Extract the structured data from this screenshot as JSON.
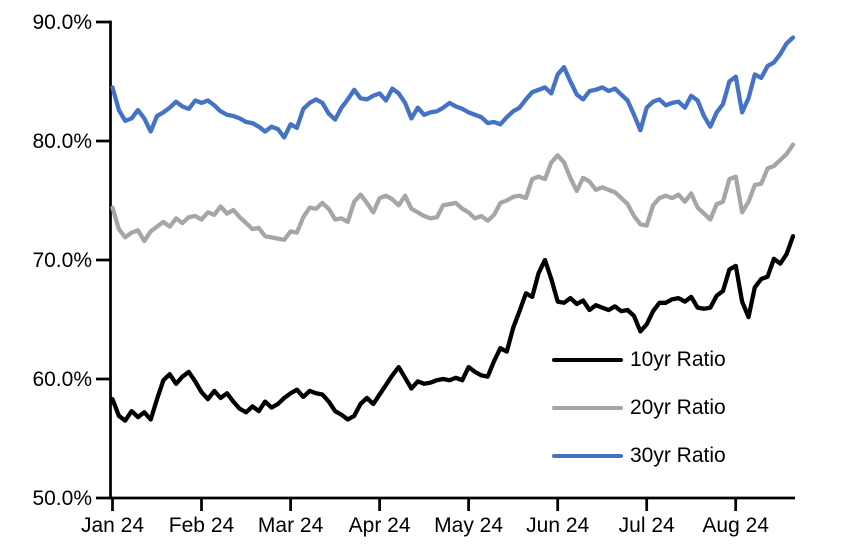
{
  "figure": {
    "background_color": "#ffffff",
    "axis_color": "#000000",
    "title": ""
  },
  "chart_data": {
    "type": "line",
    "title": "",
    "xlabel": "",
    "ylabel": "",
    "grid": false,
    "legend_position": "inside lower right",
    "ylim": [
      50,
      90
    ],
    "y_tick_labels": [
      "90.0%",
      "80.0%",
      "70.0%",
      "60.0%",
      "50.0%"
    ],
    "y_tick_values": [
      90,
      80,
      70,
      60,
      50
    ],
    "x_tick_labels": [
      "Jan 24",
      "Feb 24",
      "Mar 24",
      "Apr 24",
      "May 24",
      "Jun 24",
      "Jul 24",
      "Aug 24"
    ],
    "x_tick_indices": [
      0,
      14,
      28,
      42,
      56,
      70,
      84,
      98
    ],
    "x_unit": "business days, Jan 2024 through late Aug 2024 (14 points per month)",
    "series": [
      {
        "name": "10yr Ratio",
        "color": "#000000",
        "values": [
          58.3,
          56.9,
          56.5,
          57.3,
          56.8,
          57.2,
          56.6,
          58.3,
          59.9,
          60.4,
          59.6,
          60.2,
          60.6,
          59.8,
          58.9,
          58.3,
          59.0,
          58.4,
          58.8,
          58.1,
          57.5,
          57.2,
          57.7,
          57.3,
          58.1,
          57.6,
          57.9,
          58.4,
          58.8,
          59.1,
          58.5,
          59.0,
          58.8,
          58.7,
          58.1,
          57.3,
          57.0,
          56.6,
          56.9,
          57.9,
          58.4,
          57.9,
          58.7,
          59.5,
          60.3,
          61.0,
          60.1,
          59.2,
          59.8,
          59.6,
          59.7,
          59.9,
          60.0,
          59.9,
          60.1,
          59.9,
          61.0,
          60.6,
          60.3,
          60.2,
          61.5,
          62.6,
          62.3,
          64.3,
          65.7,
          67.2,
          66.9,
          68.9,
          70.0,
          68.4,
          66.5,
          66.4,
          66.8,
          66.3,
          66.6,
          65.8,
          66.2,
          66.0,
          65.8,
          66.1,
          65.7,
          65.8,
          65.3,
          64.0,
          64.6,
          65.7,
          66.4,
          66.4,
          66.7,
          66.8,
          66.5,
          66.9,
          66.0,
          65.9,
          66.0,
          67.0,
          67.4,
          69.2,
          69.5,
          66.5,
          65.2,
          67.7,
          68.4,
          68.6,
          70.1,
          69.7,
          70.5,
          72.0
        ]
      },
      {
        "name": "20yr Ratio",
        "color": "#A6A6A6",
        "values": [
          74.4,
          72.6,
          71.9,
          72.3,
          72.5,
          71.6,
          72.4,
          72.8,
          73.2,
          72.8,
          73.5,
          73.1,
          73.6,
          73.7,
          73.4,
          74.0,
          73.8,
          74.5,
          73.9,
          74.2,
          73.6,
          73.1,
          72.6,
          72.7,
          72.0,
          71.9,
          71.8,
          71.7,
          72.4,
          72.3,
          73.6,
          74.4,
          74.3,
          74.8,
          74.3,
          73.4,
          73.5,
          73.2,
          74.9,
          75.5,
          74.8,
          74.0,
          75.2,
          75.4,
          75.1,
          74.6,
          75.4,
          74.3,
          74.0,
          73.7,
          73.5,
          73.6,
          74.6,
          74.7,
          74.8,
          74.3,
          74.0,
          73.5,
          73.7,
          73.3,
          73.8,
          74.8,
          75.0,
          75.3,
          75.4,
          75.2,
          76.8,
          77.0,
          76.8,
          78.2,
          78.8,
          78.2,
          76.9,
          75.8,
          76.9,
          76.6,
          75.9,
          76.1,
          75.9,
          75.7,
          75.2,
          74.7,
          73.7,
          73.0,
          72.9,
          74.6,
          75.2,
          75.4,
          75.2,
          75.5,
          74.9,
          75.6,
          74.4,
          73.9,
          73.4,
          74.7,
          74.9,
          76.8,
          77.0,
          74.0,
          74.9,
          76.3,
          76.4,
          77.7,
          77.9,
          78.4,
          78.9,
          79.7
        ]
      },
      {
        "name": "30yr Ratio",
        "color": "#4472C4",
        "values": [
          84.5,
          82.6,
          81.7,
          81.9,
          82.6,
          81.9,
          80.8,
          82.1,
          82.4,
          82.8,
          83.3,
          82.9,
          82.7,
          83.4,
          83.2,
          83.4,
          83.0,
          82.5,
          82.2,
          82.1,
          81.9,
          81.6,
          81.5,
          81.2,
          80.8,
          81.2,
          81.0,
          80.3,
          81.4,
          81.1,
          82.7,
          83.2,
          83.5,
          83.2,
          82.3,
          81.8,
          82.8,
          83.5,
          84.3,
          83.6,
          83.5,
          83.8,
          84.0,
          83.4,
          84.4,
          84.0,
          83.2,
          81.9,
          82.8,
          82.2,
          82.4,
          82.5,
          82.8,
          83.2,
          82.9,
          82.7,
          82.4,
          82.2,
          82.0,
          81.5,
          81.6,
          81.4,
          82.0,
          82.5,
          82.8,
          83.5,
          84.1,
          84.3,
          84.5,
          84.0,
          85.6,
          86.2,
          85.0,
          83.9,
          83.5,
          84.2,
          84.3,
          84.5,
          84.2,
          84.4,
          83.9,
          83.4,
          82.2,
          80.9,
          82.8,
          83.3,
          83.5,
          83.0,
          83.2,
          83.3,
          82.8,
          83.8,
          83.4,
          82.1,
          81.2,
          82.4,
          83.1,
          85.0,
          85.4,
          82.4,
          83.6,
          85.6,
          85.3,
          86.3,
          86.6,
          87.3,
          88.2,
          88.7
        ]
      }
    ]
  },
  "legend": {
    "items": [
      {
        "label": "10yr Ratio",
        "color": "#000000"
      },
      {
        "label": "20yr Ratio",
        "color": "#A6A6A6"
      },
      {
        "label": "30yr Ratio",
        "color": "#4472C4"
      }
    ]
  }
}
